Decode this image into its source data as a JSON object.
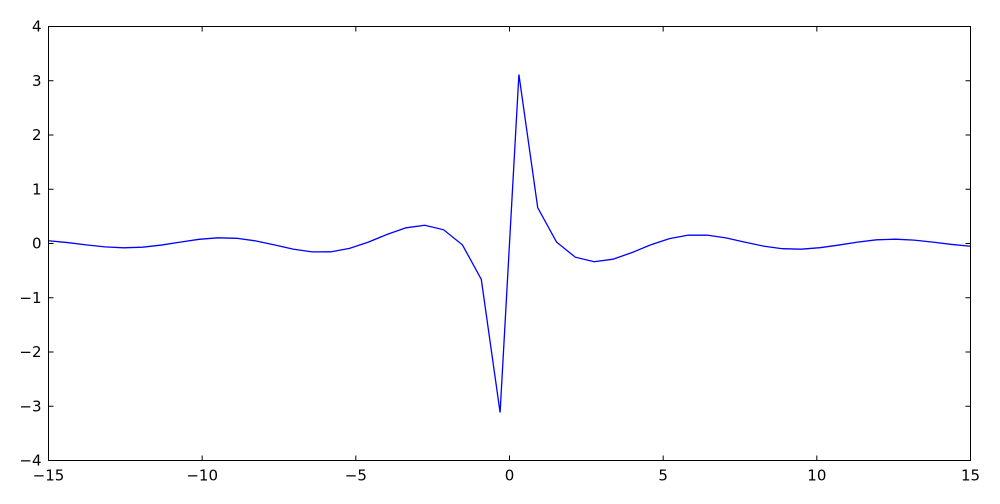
{
  "chart_data": {
    "type": "line",
    "title": "",
    "xlabel": "",
    "ylabel": "",
    "xlim": [
      -15,
      15
    ],
    "ylim": [
      -4,
      4
    ],
    "grid": false,
    "line_color": "#0000ff",
    "x_ticks": [
      -15,
      -10,
      -5,
      0,
      5,
      10,
      15
    ],
    "x_tick_labels": [
      "−15",
      "−10",
      "−5",
      "0",
      "5",
      "10",
      "15"
    ],
    "y_ticks": [
      -4,
      -3,
      -2,
      -1,
      0,
      1,
      2,
      3,
      4
    ],
    "y_tick_labels": [
      "−4",
      "−3",
      "−2",
      "−1",
      "0",
      "1",
      "2",
      "3",
      "4"
    ],
    "series": [
      {
        "x": [
          -15,
          -14.388,
          -13.776,
          -13.163,
          -12.551,
          -11.939,
          -11.327,
          -10.714,
          -10.102,
          -9.49,
          -8.878,
          -8.265,
          -7.653,
          -7.041,
          -6.429,
          -5.816,
          -5.204,
          -4.592,
          -3.98,
          -3.367,
          -2.755,
          -2.143,
          -1.531,
          -0.918,
          -0.306,
          0.306,
          0.918,
          1.531,
          2.143,
          2.755,
          3.367,
          3.98,
          4.592,
          5.204,
          5.816,
          6.429,
          7.041,
          7.653,
          8.265,
          8.878,
          9.49,
          10.102,
          10.714,
          11.327,
          11.939,
          12.551,
          13.163,
          13.776,
          14.388,
          15
        ],
        "y": [
          0.0506,
          0.0173,
          -0.0256,
          -0.0628,
          -0.0797,
          -0.0678,
          -0.0287,
          0.0259,
          0.0772,
          0.1052,
          0.0961,
          0.0484,
          -0.0261,
          -0.1032,
          -0.1539,
          -0.1535,
          -0.0907,
          0.0262,
          0.1681,
          0.2894,
          0.336,
          0.2525,
          -0.0263,
          -0.661,
          -3.115,
          3.115,
          0.661,
          0.0263,
          -0.2525,
          -0.336,
          -0.2894,
          -0.1681,
          -0.0262,
          0.0907,
          0.1535,
          0.1539,
          0.1032,
          0.0261,
          -0.0484,
          -0.0961,
          -0.1052,
          -0.0772,
          -0.0287,
          0.0259,
          0.0678,
          0.0797,
          0.0628,
          0.0256,
          -0.0173,
          -0.0506
        ]
      }
    ]
  }
}
